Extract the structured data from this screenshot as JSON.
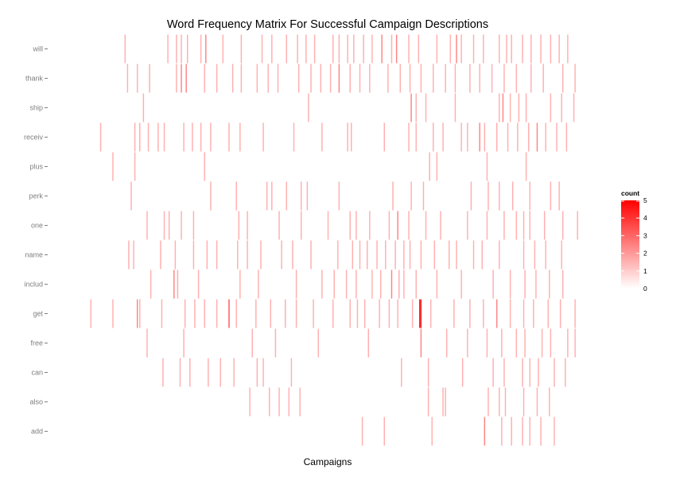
{
  "chart_data": {
    "type": "heatmap",
    "title": "Word Frequency Matrix For Successful Campaign Descriptions",
    "xlabel": "Campaigns",
    "ylabel": "",
    "words": [
      "will",
      "thank",
      "ship",
      "receiv",
      "plus",
      "perk",
      "one",
      "name",
      "includ",
      "get",
      "free",
      "can",
      "also",
      "add"
    ],
    "value_range": [
      0,
      5
    ],
    "colors": {
      "low": "#ffffff",
      "high": "#ff0000"
    },
    "legend": {
      "title": "count",
      "ticks": [
        0,
        1,
        2,
        3,
        4,
        5
      ],
      "position": "right"
    },
    "grid": false,
    "campaign_range": [
      1,
      400
    ],
    "cells": {
      "will": [
        [
          30,
          1
        ],
        [
          65,
          1
        ],
        [
          72,
          1
        ],
        [
          76,
          1
        ],
        [
          81,
          1
        ],
        [
          92,
          1
        ],
        [
          96,
          2
        ],
        [
          110,
          1
        ],
        [
          125,
          1
        ],
        [
          142,
          1
        ],
        [
          150,
          1
        ],
        [
          162,
          1
        ],
        [
          171,
          1
        ],
        [
          178,
          1
        ],
        [
          185,
          1
        ],
        [
          200,
          1
        ],
        [
          205,
          1
        ],
        [
          212,
          1
        ],
        [
          217,
          1
        ],
        [
          225,
          1
        ],
        [
          232,
          1
        ],
        [
          240,
          2
        ],
        [
          248,
          1
        ],
        [
          252,
          2
        ],
        [
          262,
          1
        ],
        [
          270,
          1
        ],
        [
          285,
          1
        ],
        [
          296,
          1
        ],
        [
          301,
          2
        ],
        [
          305,
          1
        ],
        [
          315,
          1
        ],
        [
          323,
          1
        ],
        [
          336,
          1
        ],
        [
          342,
          1
        ],
        [
          346,
          1
        ],
        [
          355,
          1
        ],
        [
          362,
          1
        ],
        [
          370,
          1
        ],
        [
          378,
          1
        ],
        [
          385,
          1
        ],
        [
          392,
          1
        ]
      ],
      "thank": [
        [
          32,
          1
        ],
        [
          40,
          1
        ],
        [
          50,
          1
        ],
        [
          72,
          1
        ],
        [
          76,
          2
        ],
        [
          80,
          2
        ],
        [
          95,
          1
        ],
        [
          105,
          1
        ],
        [
          118,
          1
        ],
        [
          125,
          1
        ],
        [
          138,
          1
        ],
        [
          147,
          1
        ],
        [
          155,
          1
        ],
        [
          172,
          1
        ],
        [
          182,
          1
        ],
        [
          190,
          1
        ],
        [
          198,
          1
        ],
        [
          205,
          2
        ],
        [
          214,
          1
        ],
        [
          222,
          1
        ],
        [
          230,
          1
        ],
        [
          245,
          1
        ],
        [
          255,
          1
        ],
        [
          263,
          1
        ],
        [
          272,
          1
        ],
        [
          282,
          1
        ],
        [
          292,
          1
        ],
        [
          300,
          1
        ],
        [
          312,
          1
        ],
        [
          320,
          1
        ],
        [
          330,
          1
        ],
        [
          340,
          1
        ],
        [
          350,
          1
        ],
        [
          362,
          1
        ],
        [
          372,
          1
        ],
        [
          388,
          1
        ],
        [
          398,
          1
        ]
      ],
      "ship": [
        [
          45,
          1
        ],
        [
          180,
          1
        ],
        [
          264,
          2
        ],
        [
          268,
          1
        ],
        [
          276,
          1
        ],
        [
          300,
          1
        ],
        [
          336,
          1
        ],
        [
          339,
          2
        ],
        [
          345,
          1
        ],
        [
          352,
          1
        ],
        [
          358,
          1
        ],
        [
          378,
          1
        ],
        [
          387,
          1
        ],
        [
          397,
          1
        ]
      ],
      "receiv": [
        [
          10,
          1
        ],
        [
          38,
          1
        ],
        [
          42,
          1
        ],
        [
          49,
          1
        ],
        [
          57,
          1
        ],
        [
          62,
          1
        ],
        [
          78,
          1
        ],
        [
          85,
          1
        ],
        [
          92,
          1
        ],
        [
          100,
          1
        ],
        [
          115,
          1
        ],
        [
          124,
          1
        ],
        [
          143,
          1
        ],
        [
          168,
          1
        ],
        [
          191,
          1
        ],
        [
          212,
          1
        ],
        [
          215,
          1
        ],
        [
          242,
          1
        ],
        [
          262,
          1
        ],
        [
          268,
          1
        ],
        [
          282,
          1
        ],
        [
          290,
          1
        ],
        [
          305,
          1
        ],
        [
          310,
          1
        ],
        [
          320,
          2
        ],
        [
          324,
          1
        ],
        [
          334,
          1
        ],
        [
          343,
          1
        ],
        [
          351,
          1
        ],
        [
          360,
          1
        ],
        [
          367,
          2
        ],
        [
          374,
          1
        ],
        [
          383,
          1
        ],
        [
          391,
          1
        ]
      ],
      "plus": [
        [
          20,
          1
        ],
        [
          38,
          1
        ],
        [
          95,
          1
        ],
        [
          279,
          1
        ],
        [
          285,
          1
        ],
        [
          326,
          1
        ],
        [
          358,
          1
        ]
      ],
      "perk": [
        [
          35,
          1
        ],
        [
          100,
          1
        ],
        [
          121,
          1
        ],
        [
          146,
          1
        ],
        [
          150,
          1
        ],
        [
          162,
          1
        ],
        [
          174,
          1
        ],
        [
          179,
          1
        ],
        [
          205,
          1
        ],
        [
          249,
          1
        ],
        [
          264,
          1
        ],
        [
          274,
          1
        ],
        [
          313,
          1
        ],
        [
          327,
          1
        ],
        [
          336,
          1
        ],
        [
          347,
          1
        ],
        [
          361,
          1
        ],
        [
          378,
          1
        ],
        [
          385,
          1
        ]
      ],
      "one": [
        [
          48,
          1
        ],
        [
          62,
          1
        ],
        [
          66,
          1
        ],
        [
          76,
          1
        ],
        [
          86,
          1
        ],
        [
          123,
          1
        ],
        [
          130,
          1
        ],
        [
          156,
          1
        ],
        [
          174,
          1
        ],
        [
          196,
          1
        ],
        [
          214,
          1
        ],
        [
          219,
          1
        ],
        [
          230,
          1
        ],
        [
          246,
          1
        ],
        [
          253,
          2
        ],
        [
          262,
          1
        ],
        [
          276,
          1
        ],
        [
          288,
          1
        ],
        [
          310,
          1
        ],
        [
          326,
          1
        ],
        [
          340,
          1
        ],
        [
          350,
          1
        ],
        [
          356,
          1
        ],
        [
          361,
          1
        ],
        [
          373,
          1
        ],
        [
          388,
          1
        ],
        [
          400,
          1
        ]
      ],
      "name": [
        [
          33,
          1
        ],
        [
          37,
          1
        ],
        [
          59,
          1
        ],
        [
          71,
          1
        ],
        [
          86,
          1
        ],
        [
          97,
          1
        ],
        [
          105,
          1
        ],
        [
          122,
          1
        ],
        [
          130,
          1
        ],
        [
          141,
          1
        ],
        [
          158,
          1
        ],
        [
          167,
          1
        ],
        [
          182,
          1
        ],
        [
          204,
          1
        ],
        [
          216,
          1
        ],
        [
          222,
          1
        ],
        [
          228,
          1
        ],
        [
          236,
          1
        ],
        [
          243,
          1
        ],
        [
          251,
          1
        ],
        [
          258,
          1
        ],
        [
          263,
          1
        ],
        [
          272,
          1
        ],
        [
          283,
          1
        ],
        [
          295,
          1
        ],
        [
          301,
          1
        ],
        [
          315,
          1
        ],
        [
          322,
          1
        ],
        [
          336,
          1
        ],
        [
          356,
          1
        ],
        [
          365,
          1
        ],
        [
          374,
          1
        ],
        [
          387,
          1
        ]
      ],
      "includ": [
        [
          51,
          1
        ],
        [
          70,
          2
        ],
        [
          73,
          1
        ],
        [
          90,
          1
        ],
        [
          124,
          1
        ],
        [
          139,
          1
        ],
        [
          170,
          1
        ],
        [
          191,
          1
        ],
        [
          201,
          1
        ],
        [
          211,
          1
        ],
        [
          219,
          1
        ],
        [
          232,
          1
        ],
        [
          239,
          1
        ],
        [
          248,
          2
        ],
        [
          254,
          1
        ],
        [
          258,
          1
        ],
        [
          268,
          1
        ],
        [
          285,
          1
        ],
        [
          305,
          1
        ],
        [
          331,
          1
        ],
        [
          345,
          1
        ],
        [
          357,
          1
        ],
        [
          366,
          1
        ],
        [
          377,
          1
        ],
        [
          388,
          1
        ]
      ],
      "get": [
        [
          2,
          1
        ],
        [
          20,
          1
        ],
        [
          40,
          2
        ],
        [
          42,
          1
        ],
        [
          60,
          1
        ],
        [
          79,
          1
        ],
        [
          87,
          1
        ],
        [
          95,
          1
        ],
        [
          105,
          1
        ],
        [
          115,
          3
        ],
        [
          121,
          1
        ],
        [
          137,
          1
        ],
        [
          149,
          1
        ],
        [
          161,
          1
        ],
        [
          170,
          1
        ],
        [
          184,
          1
        ],
        [
          200,
          1
        ],
        [
          214,
          1
        ],
        [
          220,
          1
        ],
        [
          226,
          1
        ],
        [
          238,
          1
        ],
        [
          246,
          1
        ],
        [
          253,
          1
        ],
        [
          265,
          1
        ],
        [
          271,
          5
        ],
        [
          272,
          4
        ],
        [
          280,
          1
        ],
        [
          299,
          1
        ],
        [
          312,
          1
        ],
        [
          323,
          1
        ],
        [
          334,
          2
        ],
        [
          345,
          1
        ],
        [
          356,
          1
        ],
        [
          364,
          1
        ],
        [
          376,
          1
        ],
        [
          386,
          1
        ],
        [
          398,
          1
        ]
      ],
      "free": [
        [
          48,
          1
        ],
        [
          78,
          1
        ],
        [
          134,
          1
        ],
        [
          153,
          1
        ],
        [
          188,
          1
        ],
        [
          229,
          1
        ],
        [
          272,
          2
        ],
        [
          293,
          1
        ],
        [
          310,
          1
        ],
        [
          326,
          1
        ],
        [
          338,
          1
        ],
        [
          350,
          1
        ],
        [
          357,
          1
        ],
        [
          371,
          1
        ],
        [
          378,
          1
        ],
        [
          392,
          1
        ],
        [
          398,
          1
        ]
      ],
      "can": [
        [
          61,
          1
        ],
        [
          75,
          1
        ],
        [
          83,
          1
        ],
        [
          98,
          1
        ],
        [
          108,
          1
        ],
        [
          119,
          1
        ],
        [
          138,
          1
        ],
        [
          143,
          1
        ],
        [
          166,
          1
        ],
        [
          256,
          1
        ],
        [
          278,
          1
        ],
        [
          306,
          1
        ],
        [
          331,
          1
        ],
        [
          340,
          1
        ],
        [
          355,
          1
        ],
        [
          361,
          1
        ],
        [
          368,
          1
        ],
        [
          381,
          1
        ],
        [
          390,
          1
        ]
      ],
      "also": [
        [
          132,
          1
        ],
        [
          148,
          1
        ],
        [
          156,
          1
        ],
        [
          164,
          1
        ],
        [
          173,
          1
        ],
        [
          278,
          1
        ],
        [
          290,
          1
        ],
        [
          292,
          1
        ],
        [
          327,
          1
        ],
        [
          336,
          1
        ],
        [
          341,
          1
        ],
        [
          356,
          1
        ],
        [
          367,
          1
        ],
        [
          377,
          1
        ]
      ],
      "add": [
        [
          224,
          1
        ],
        [
          242,
          1
        ],
        [
          281,
          1
        ],
        [
          324,
          2
        ],
        [
          338,
          1
        ],
        [
          346,
          1
        ],
        [
          355,
          1
        ],
        [
          361,
          1
        ],
        [
          370,
          1
        ],
        [
          381,
          1
        ]
      ]
    }
  }
}
